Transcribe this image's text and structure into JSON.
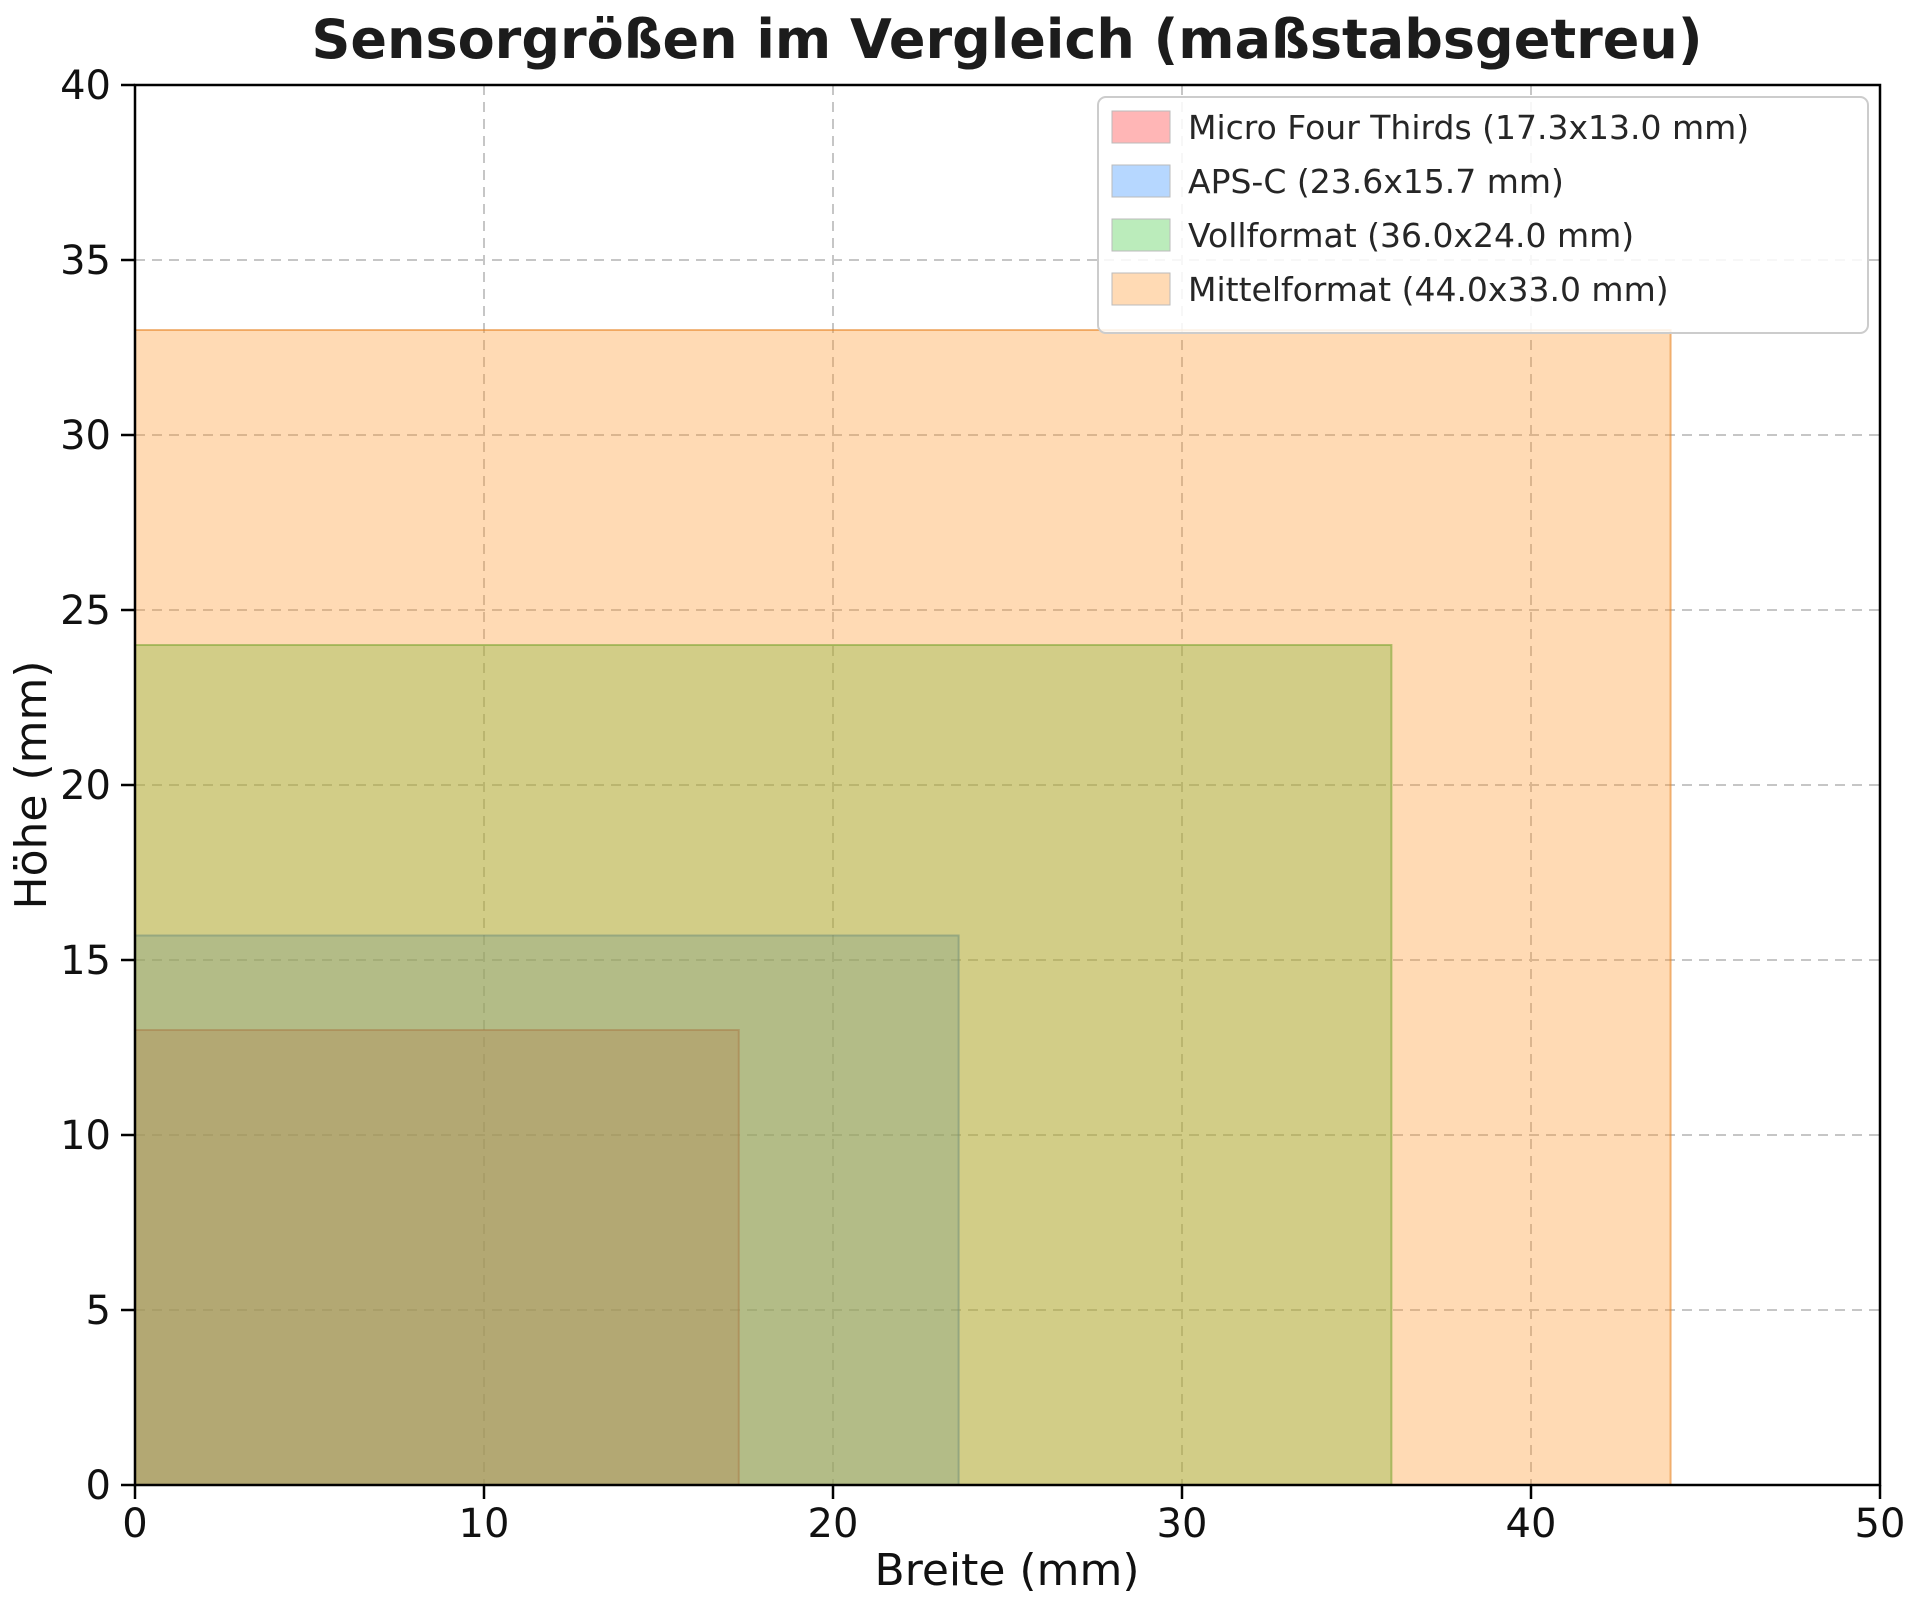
{
  "chart_data": {
    "type": "area",
    "title": "Sensorgrößen im Vergleich (maßstabsgetreu)",
    "xlabel": "Breite (mm)",
    "ylabel": "Höhe (mm)",
    "xlim": [
      0,
      50
    ],
    "ylim": [
      0,
      40
    ],
    "xticks": [
      0,
      10,
      20,
      30,
      40,
      50
    ],
    "yticks": [
      0,
      5,
      10,
      15,
      20,
      25,
      30,
      35,
      40
    ],
    "grid": true,
    "grid_style": "dashed",
    "grid_color": "#c6c6c6",
    "legend_position": "upper right",
    "series": [
      {
        "name": "Micro Four Thirds",
        "label": "Micro Four Thirds (17.3x13.0 mm)",
        "width_mm": 17.3,
        "height_mm": 13.0,
        "fill": "rgba(255,45,45,0.35)",
        "edge": "rgba(215,35,35,0.55)"
      },
      {
        "name": "APS-C",
        "label": "APS-C (23.6x15.7 mm)",
        "width_mm": 23.6,
        "height_mm": 15.7,
        "fill": "rgba(45,139,255,0.35)",
        "edge": "rgba(30,110,220,0.55)"
      },
      {
        "name": "Vollformat",
        "label": "Vollformat (36.0x24.0 mm)",
        "width_mm": 36.0,
        "height_mm": 24.0,
        "fill": "rgba(60,200,60,0.35)",
        "edge": "rgba(45,170,45,0.55)"
      },
      {
        "name": "Mittelformat",
        "label": "Mittelformat (44.0x33.0 mm)",
        "width_mm": 44.0,
        "height_mm": 33.0,
        "fill": "rgba(255,150,40,0.35)",
        "edge": "rgba(230,125,25,0.55)"
      }
    ]
  }
}
